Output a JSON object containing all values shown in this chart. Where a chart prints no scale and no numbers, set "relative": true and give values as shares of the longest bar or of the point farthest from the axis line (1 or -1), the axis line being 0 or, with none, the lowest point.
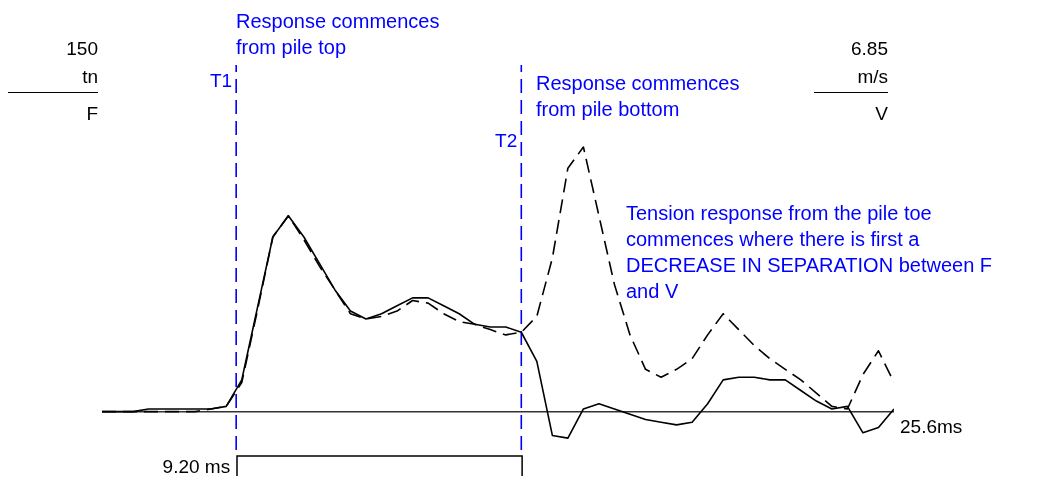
{
  "chart_data": {
    "type": "line",
    "relative": true,
    "marker": "none",
    "categories": [
      null,
      null,
      null,
      null,
      null,
      null,
      null,
      null,
      null,
      null,
      null,
      null,
      null,
      null,
      null,
      null,
      null,
      null,
      null,
      null,
      null,
      null,
      null,
      null,
      null,
      null,
      null,
      null,
      null,
      null,
      null,
      null,
      null,
      null,
      null,
      null,
      null,
      null,
      null,
      null,
      null,
      null,
      null,
      null,
      null,
      null,
      null,
      null,
      null,
      null,
      null,
      null
    ],
    "series": [
      {
        "color": "#000000",
        "line_style": "solid",
        "values": [
          0,
          0,
          0,
          0.01,
          0.01,
          0.01,
          0.01,
          0.01,
          0.02,
          0.12,
          0.39,
          0.66,
          0.74,
          0.66,
          0.56,
          0.46,
          0.38,
          0.35,
          0.37,
          0.4,
          0.43,
          0.43,
          0.4,
          0.37,
          0.33,
          0.32,
          0.32,
          0.3,
          0.19,
          -0.09,
          -0.1,
          0.01,
          0.03,
          0.01,
          -0.01,
          -0.03,
          -0.04,
          -0.05,
          -0.04,
          0.03,
          0.12,
          0.13,
          0.13,
          0.12,
          0.12,
          0.08,
          0.04,
          0.01,
          0.02,
          -0.08,
          -0.06,
          0.01
        ]
      },
      {
        "color": "#000000",
        "line_style": "dashed",
        "values": [
          0,
          0,
          0,
          0,
          0,
          0,
          0,
          0.01,
          0.02,
          0.11,
          0.38,
          0.66,
          0.74,
          0.65,
          0.55,
          0.46,
          0.37,
          0.35,
          0.36,
          0.38,
          0.42,
          0.41,
          0.37,
          0.34,
          0.33,
          0.31,
          0.29,
          0.3,
          0.36,
          0.58,
          0.92,
          1,
          0.74,
          0.48,
          0.29,
          0.16,
          0.13,
          0.16,
          0.2,
          0.29,
          0.37,
          0.31,
          0.25,
          0.2,
          0.16,
          0.12,
          0.07,
          0.02,
          0.01,
          0.14,
          0.23,
          0.11
        ]
      }
    ],
    "annotations": [
      "Response commences from pile top",
      "Response commences from pile bottom",
      "Tension response from the pile toe commences where there is first a DECREASE IN SEPARATION between F and V",
      "150",
      "tn",
      "F",
      "6.85",
      "m/s",
      "V",
      "9.20 ms",
      "25.6ms",
      "T1",
      "T2"
    ]
  }
}
